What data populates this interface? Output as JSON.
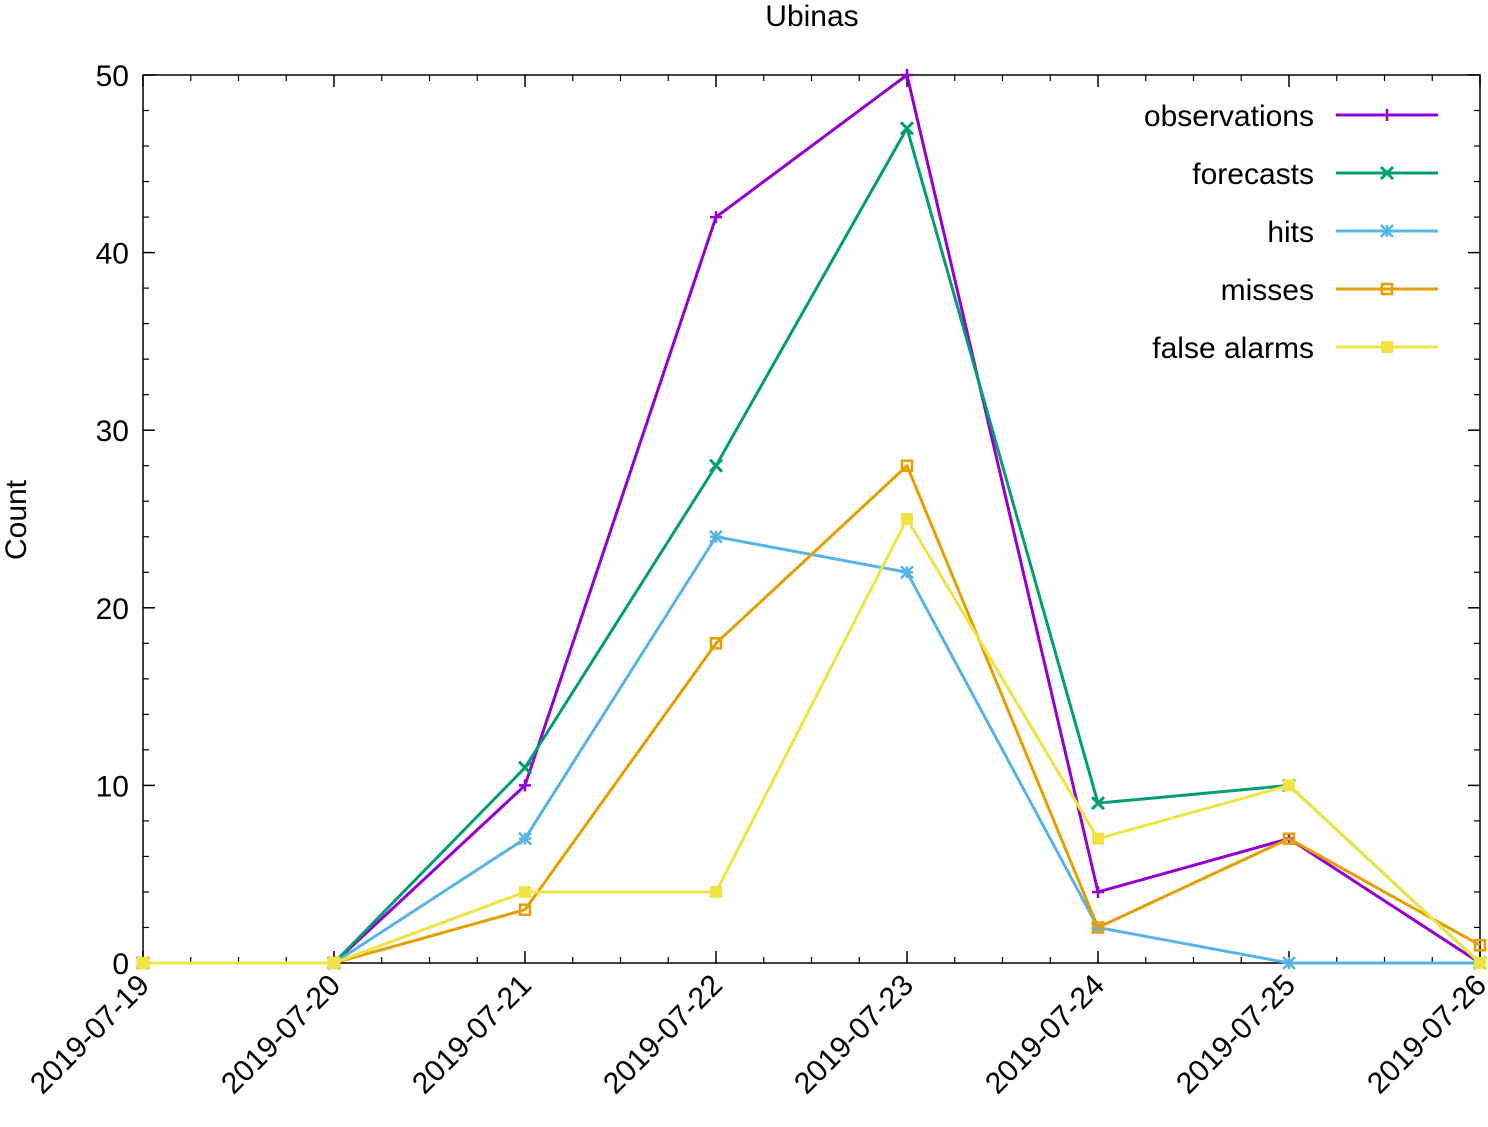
{
  "chart_data": {
    "type": "line",
    "title": "Ubinas",
    "xlabel": "",
    "ylabel": "Count",
    "categories": [
      "2019-07-19",
      "2019-07-20",
      "2019-07-21",
      "2019-07-22",
      "2019-07-23",
      "2019-07-24",
      "2019-07-25",
      "2019-07-26"
    ],
    "ylim": [
      0,
      50
    ],
    "yticks": [
      0,
      10,
      20,
      30,
      40,
      50
    ],
    "grid": false,
    "legend_position": "top-right",
    "series": [
      {
        "name": "observations",
        "color": "#9400d3",
        "marker": "plus",
        "values": [
          0,
          0,
          10,
          42,
          50,
          4,
          7,
          0
        ]
      },
      {
        "name": "forecasts",
        "color": "#009e73",
        "marker": "cross",
        "values": [
          0,
          0,
          11,
          28,
          47,
          9,
          10,
          0
        ]
      },
      {
        "name": "hits",
        "color": "#56b4e9",
        "marker": "asterisk",
        "values": [
          0,
          0,
          7,
          24,
          22,
          2,
          0,
          0
        ]
      },
      {
        "name": "misses",
        "color": "#e69f00",
        "marker": "open-square",
        "values": [
          0,
          0,
          3,
          18,
          28,
          2,
          7,
          1
        ]
      },
      {
        "name": "false alarms",
        "color": "#f0e442",
        "marker": "filled-square",
        "values": [
          0,
          0,
          4,
          4,
          25,
          7,
          10,
          0
        ]
      }
    ]
  }
}
